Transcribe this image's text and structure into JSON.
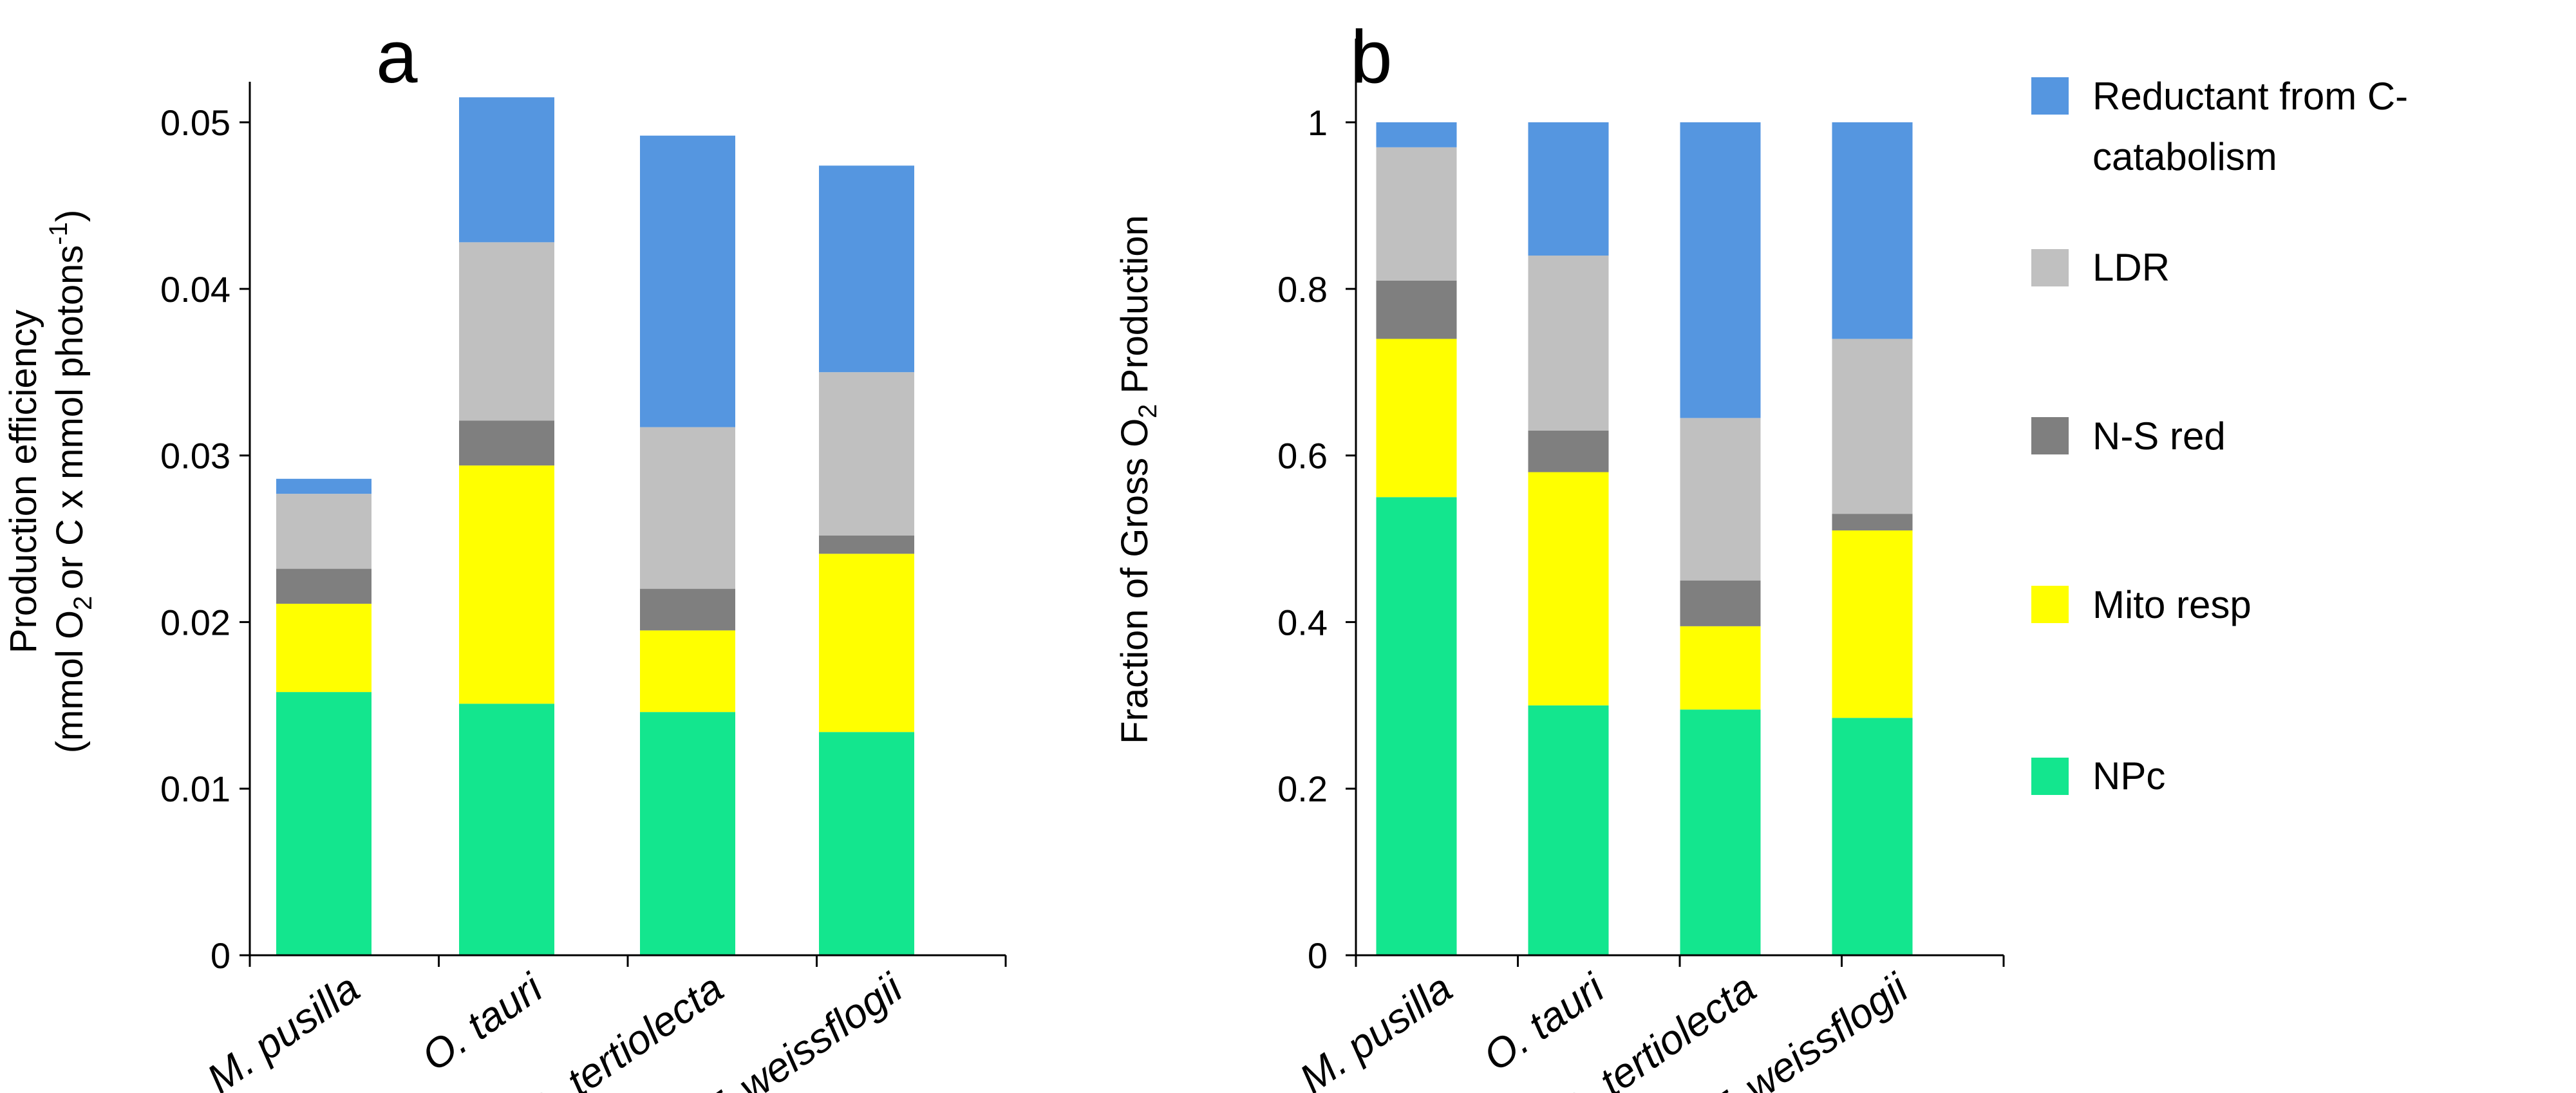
{
  "chart_data": [
    {
      "panel": "a",
      "type": "bar",
      "stacked": true,
      "categories": [
        "M. pusilla",
        "O. tauri",
        "D. tertiolecta",
        "T. weissflogii"
      ],
      "ylabel_line1": "Production efficiency",
      "ylabel_line2_pre": "(mmol O",
      "ylabel_line2_sub": "2",
      "ylabel_line2_mid": "or C x mmol photons",
      "ylabel_line2_sup": "-1",
      "ylabel_line2_post": ")",
      "ylim": [
        0,
        0.05
      ],
      "yticks": [
        0,
        0.01,
        0.02,
        0.03,
        0.04,
        0.05
      ],
      "ytick_labels": [
        "0",
        "0.01",
        "0.02",
        "0.03",
        "0.04",
        "0.05"
      ],
      "series": [
        {
          "name": "NPc",
          "values": [
            0.0158,
            0.0151,
            0.0146,
            0.0134
          ]
        },
        {
          "name": "Mito resp",
          "values": [
            0.0053,
            0.0143,
            0.0049,
            0.0107
          ]
        },
        {
          "name": "N-S red",
          "values": [
            0.0021,
            0.0027,
            0.0025,
            0.0011
          ]
        },
        {
          "name": "LDR",
          "values": [
            0.0045,
            0.0107,
            0.0097,
            0.0098
          ]
        },
        {
          "name": "Reductant from C-catabolism",
          "values": [
            0.0009,
            0.0087,
            0.0175,
            0.0124
          ]
        }
      ]
    },
    {
      "panel": "b",
      "type": "bar",
      "stacked": true,
      "categories": [
        "M. pusilla",
        "O. tauri",
        "D. tertiolecta",
        "T. weissflogii"
      ],
      "ylabel_pre": "Fraction of Gross O",
      "ylabel_sub": "2",
      "ylabel_post": " Production",
      "ylim": [
        0,
        1
      ],
      "yticks": [
        0,
        0.2,
        0.4,
        0.6,
        0.8,
        1
      ],
      "ytick_labels": [
        "0",
        "0.2",
        "0.4",
        "0.6",
        "0.8",
        "1"
      ],
      "series": [
        {
          "name": "NPc",
          "values": [
            0.55,
            0.3,
            0.295,
            0.285
          ]
        },
        {
          "name": "Mito resp",
          "values": [
            0.19,
            0.28,
            0.1,
            0.225
          ]
        },
        {
          "name": "N-S red",
          "values": [
            0.07,
            0.05,
            0.055,
            0.02
          ]
        },
        {
          "name": "LDR",
          "values": [
            0.16,
            0.21,
            0.195,
            0.21
          ]
        },
        {
          "name": "Reductant from C-catabolism",
          "values": [
            0.03,
            0.16,
            0.355,
            0.26
          ]
        }
      ]
    }
  ],
  "legend": [
    {
      "key": "reductant",
      "label_line1": "Reductant from C-",
      "label_line2": "catabolism",
      "color": "#5596e0"
    },
    {
      "key": "ldr",
      "label_line1": "LDR",
      "label_line2": "",
      "color": "#c0c0c0"
    },
    {
      "key": "nsred",
      "label_line1": "N-S red",
      "label_line2": "",
      "color": "#7f7f7f"
    },
    {
      "key": "mito",
      "label_line1": "Mito resp",
      "label_line2": "",
      "color": "#ffff00"
    },
    {
      "key": "npc",
      "label_line1": "NPc",
      "label_line2": "",
      "color": "#13e68e"
    }
  ],
  "series_colors": [
    "#13e68e",
    "#ffff00",
    "#7f7f7f",
    "#c0c0c0",
    "#5596e0"
  ]
}
